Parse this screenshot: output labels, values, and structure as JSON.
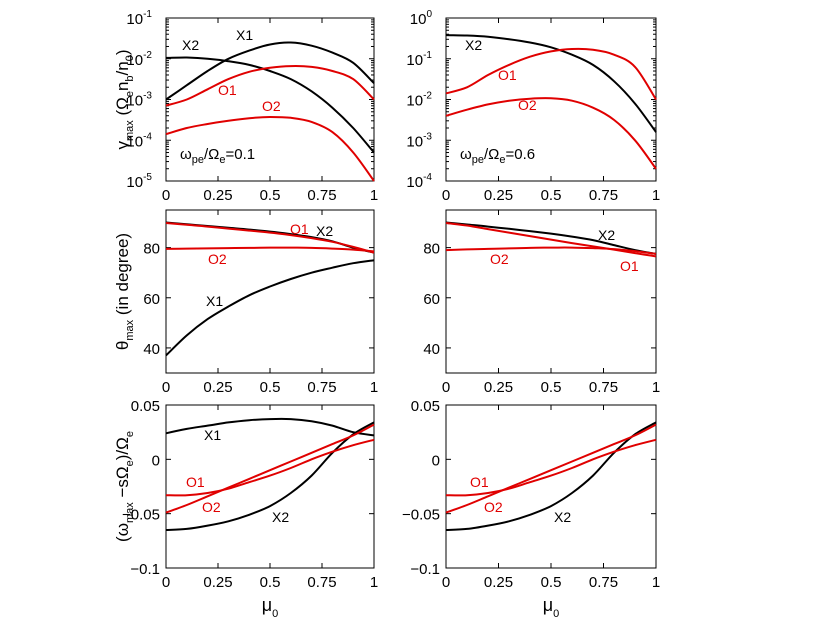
{
  "chart_data": {
    "type": "line",
    "colors": {
      "X1": "#000000",
      "X2": "#000000",
      "O1": "#e00000",
      "O2": "#e00000"
    },
    "xlabel_main": "μ",
    "xlabel_sub": "0",
    "x_ticks": [
      "0",
      "0.25",
      "0.5",
      "0.75",
      "1"
    ],
    "x_tick_values": [
      0,
      0.25,
      0.5,
      0.75,
      1
    ],
    "rows": [
      {
        "name": "gamma",
        "scale": "log",
        "ylim_exp": [
          -5,
          -1
        ],
        "ylabel_parts": [
          "γ",
          "max",
          " (Ω",
          "e",
          "n",
          "b",
          "/n",
          "0",
          ")"
        ]
      },
      {
        "name": "theta",
        "scale": "linear",
        "ylim": [
          30,
          95
        ],
        "y_ticks": [
          "40",
          "60",
          "80"
        ],
        "y_tick_values": [
          40,
          60,
          80
        ],
        "ylabel_parts": [
          "θ",
          "max",
          " (in degree)"
        ]
      },
      {
        "name": "freq",
        "scale": "linear",
        "ylim": [
          -0.1,
          0.05
        ],
        "y_ticks": [
          "−0.1",
          "−0.05",
          "0",
          "0.05"
        ],
        "y_tick_values": [
          -0.1,
          -0.05,
          0,
          0.05
        ],
        "ylabel_parts": [
          "(ω",
          "max",
          " −sΩ",
          "e",
          ")/Ω",
          "e"
        ]
      }
    ],
    "panels": [
      {
        "row": 0,
        "col": 0,
        "y_tick_exps": [
          "-5",
          "-4",
          "-3",
          "-2",
          "-1"
        ],
        "y_tick_values": [
          -5,
          -4,
          -3,
          -2,
          -1
        ],
        "annotation_parts": [
          "ω",
          "pe",
          "/Ω",
          "e",
          "=0.1"
        ],
        "series": [
          {
            "name": "X1",
            "label": "X1",
            "x": [
              0,
              0.1,
              0.2,
              0.3,
              0.4,
              0.5,
              0.6,
              0.7,
              0.8,
              0.9,
              1.0
            ],
            "y": [
              -3.0,
              -2.65,
              -2.3,
              -2.0,
              -1.8,
              -1.65,
              -1.6,
              -1.68,
              -1.85,
              -2.1,
              -2.6
            ]
          },
          {
            "name": "X2",
            "label": "X2",
            "x": [
              0,
              0.1,
              0.2,
              0.3,
              0.4,
              0.5,
              0.6,
              0.7,
              0.8,
              0.9,
              1.0
            ],
            "y": [
              -1.98,
              -1.97,
              -2.0,
              -2.06,
              -2.15,
              -2.3,
              -2.5,
              -2.8,
              -3.2,
              -3.7,
              -4.3
            ]
          },
          {
            "name": "O1",
            "label": "O1",
            "x": [
              0,
              0.1,
              0.2,
              0.3,
              0.4,
              0.5,
              0.6,
              0.7,
              0.8,
              0.9,
              1.0
            ],
            "y": [
              -3.15,
              -3.0,
              -2.75,
              -2.5,
              -2.32,
              -2.22,
              -2.18,
              -2.2,
              -2.3,
              -2.5,
              -3.0
            ]
          },
          {
            "name": "O2",
            "label": "O2",
            "x": [
              0,
              0.1,
              0.2,
              0.3,
              0.4,
              0.5,
              0.6,
              0.7,
              0.8,
              0.9,
              1.0
            ],
            "y": [
              -3.85,
              -3.7,
              -3.6,
              -3.52,
              -3.46,
              -3.43,
              -3.45,
              -3.55,
              -3.8,
              -4.3,
              -5.0
            ]
          }
        ]
      },
      {
        "row": 0,
        "col": 1,
        "y_tick_exps": [
          "-4",
          "-3",
          "-2",
          "-1",
          "0"
        ],
        "y_tick_values": [
          -4,
          -3,
          -2,
          -1,
          0
        ],
        "annotation_parts": [
          "ω",
          "pe",
          "/Ω",
          "e",
          "=0.6"
        ],
        "series": [
          {
            "name": "X2",
            "label": "X2",
            "x": [
              0,
              0.1,
              0.2,
              0.3,
              0.4,
              0.5,
              0.6,
              0.7,
              0.8,
              0.9,
              1.0
            ],
            "y": [
              -0.42,
              -0.43,
              -0.46,
              -0.52,
              -0.6,
              -0.72,
              -0.9,
              -1.15,
              -1.55,
              -2.1,
              -2.8
            ]
          },
          {
            "name": "O1",
            "label": "O1",
            "x": [
              0,
              0.1,
              0.2,
              0.3,
              0.4,
              0.5,
              0.6,
              0.7,
              0.8,
              0.9,
              1.0
            ],
            "y": [
              -1.85,
              -1.7,
              -1.4,
              -1.15,
              -0.95,
              -0.82,
              -0.76,
              -0.78,
              -0.9,
              -1.2,
              -2.0
            ]
          },
          {
            "name": "O2",
            "label": "O2",
            "x": [
              0,
              0.1,
              0.2,
              0.3,
              0.4,
              0.5,
              0.6,
              0.7,
              0.8,
              0.9,
              1.0
            ],
            "y": [
              -2.4,
              -2.25,
              -2.12,
              -2.03,
              -1.98,
              -1.97,
              -2.03,
              -2.2,
              -2.5,
              -3.0,
              -3.7
            ]
          }
        ]
      },
      {
        "row": 1,
        "col": 0,
        "series": [
          {
            "name": "X1",
            "label": "X1",
            "x": [
              0,
              0.1,
              0.2,
              0.3,
              0.4,
              0.5,
              0.6,
              0.7,
              0.8,
              0.9,
              1.0
            ],
            "y": [
              37,
              45,
              51.5,
              56.5,
              61,
              64.5,
              67.5,
              70,
              72,
              73.8,
              75
            ]
          },
          {
            "name": "X2",
            "label": "X2",
            "x": [
              0,
              0.1,
              0.2,
              0.3,
              0.4,
              0.5,
              0.6,
              0.7,
              0.8,
              0.9,
              1.0
            ],
            "y": [
              90,
              89.3,
              88.6,
              87.9,
              87.2,
              86.4,
              85.4,
              84.2,
              82.5,
              80,
              78
            ]
          },
          {
            "name": "O1",
            "label": "O1",
            "x": [
              0,
              0.1,
              0.2,
              0.3,
              0.4,
              0.5,
              0.6,
              0.7,
              0.8,
              0.9,
              1.0
            ],
            "y": [
              89.8,
              89.1,
              88.4,
              87.6,
              86.8,
              86,
              85,
              83.8,
              82.3,
              80.3,
              78
            ]
          },
          {
            "name": "O2",
            "label": "O2",
            "x": [
              0,
              0.1,
              0.2,
              0.3,
              0.4,
              0.5,
              0.6,
              0.7,
              0.8,
              0.9,
              1.0
            ],
            "y": [
              79.5,
              79.6,
              79.7,
              79.8,
              79.9,
              80,
              80,
              79.9,
              79.6,
              79.2,
              78.5
            ]
          }
        ]
      },
      {
        "row": 1,
        "col": 1,
        "series": [
          {
            "name": "X2",
            "label": "X2",
            "x": [
              0,
              0.1,
              0.2,
              0.3,
              0.4,
              0.5,
              0.6,
              0.7,
              0.8,
              0.9,
              1.0
            ],
            "y": [
              90,
              89.2,
              88.4,
              87.5,
              86.6,
              85.6,
              84.4,
              83,
              81,
              79,
              77.5
            ]
          },
          {
            "name": "O1",
            "label": "O1",
            "x": [
              0,
              0.1,
              0.2,
              0.3,
              0.4,
              0.5,
              0.6,
              0.7,
              0.8,
              0.9,
              1.0
            ],
            "y": [
              89.8,
              88.8,
              87.4,
              86,
              84.6,
              83.2,
              81.8,
              80.5,
              79.2,
              77.8,
              76.5
            ]
          },
          {
            "name": "O2",
            "label": "O2",
            "x": [
              0,
              0.1,
              0.2,
              0.3,
              0.4,
              0.5,
              0.6,
              0.7,
              0.8,
              0.9,
              1.0
            ],
            "y": [
              79,
              79.3,
              79.5,
              79.7,
              79.9,
              80,
              80,
              79.8,
              79.4,
              78.6,
              77.5
            ]
          }
        ]
      },
      {
        "row": 2,
        "col": 0,
        "series": [
          {
            "name": "X1",
            "label": "X1",
            "x": [
              0,
              0.1,
              0.2,
              0.3,
              0.4,
              0.5,
              0.6,
              0.7,
              0.8,
              0.9,
              1.0
            ],
            "y": [
              0.024,
              0.028,
              0.031,
              0.034,
              0.036,
              0.037,
              0.037,
              0.035,
              0.031,
              0.025,
              0.022
            ]
          },
          {
            "name": "X2",
            "label": "X2",
            "x": [
              0,
              0.1,
              0.2,
              0.3,
              0.4,
              0.5,
              0.6,
              0.7,
              0.8,
              0.9,
              1.0
            ],
            "y": [
              -0.065,
              -0.064,
              -0.061,
              -0.057,
              -0.051,
              -0.043,
              -0.031,
              -0.015,
              0.006,
              0.023,
              0.034
            ]
          },
          {
            "name": "O1",
            "label": "O1",
            "x": [
              0,
              0.1,
              0.2,
              0.3,
              0.4,
              0.5,
              0.6,
              0.7,
              0.8,
              0.9,
              1.0
            ],
            "y": [
              -0.033,
              -0.033,
              -0.031,
              -0.027,
              -0.021,
              -0.015,
              -0.008,
              0.0,
              0.007,
              0.013,
              0.018
            ]
          },
          {
            "name": "O2",
            "label": "O2",
            "x": [
              0,
              0.1,
              0.2,
              0.3,
              0.4,
              0.5,
              0.6,
              0.7,
              0.8,
              0.9,
              1.0
            ],
            "y": [
              -0.049,
              -0.042,
              -0.034,
              -0.026,
              -0.018,
              -0.01,
              -0.002,
              0.006,
              0.014,
              0.022,
              0.032
            ]
          }
        ]
      },
      {
        "row": 2,
        "col": 1,
        "series": [
          {
            "name": "X2",
            "label": "X2",
            "x": [
              0,
              0.1,
              0.2,
              0.3,
              0.4,
              0.5,
              0.6,
              0.7,
              0.8,
              0.9,
              1.0
            ],
            "y": [
              -0.065,
              -0.064,
              -0.061,
              -0.057,
              -0.051,
              -0.043,
              -0.031,
              -0.015,
              0.006,
              0.023,
              0.034
            ]
          },
          {
            "name": "O1",
            "label": "O1",
            "x": [
              0,
              0.1,
              0.2,
              0.3,
              0.4,
              0.5,
              0.6,
              0.7,
              0.8,
              0.9,
              1.0
            ],
            "y": [
              -0.033,
              -0.033,
              -0.031,
              -0.027,
              -0.021,
              -0.015,
              -0.008,
              0.0,
              0.007,
              0.013,
              0.018
            ]
          },
          {
            "name": "O2",
            "label": "O2",
            "x": [
              0,
              0.1,
              0.2,
              0.3,
              0.4,
              0.5,
              0.6,
              0.7,
              0.8,
              0.9,
              1.0
            ],
            "y": [
              -0.049,
              -0.042,
              -0.034,
              -0.026,
              -0.018,
              -0.01,
              -0.002,
              0.006,
              0.014,
              0.022,
              0.032
            ]
          }
        ]
      }
    ]
  }
}
